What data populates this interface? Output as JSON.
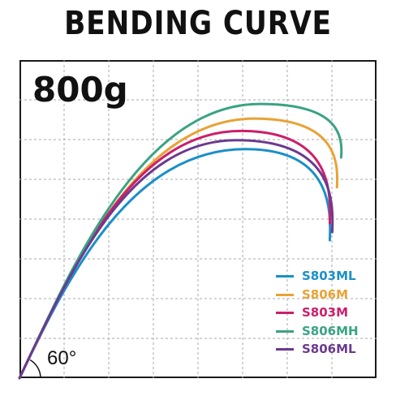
{
  "chart_data": {
    "type": "line",
    "title": "BENDING CURVE",
    "load_label": "800g",
    "angle_label": "60°",
    "grid": true,
    "legend_position": "bottom-right",
    "series": [
      {
        "name": "S803ML",
        "color": "#1a8fc9",
        "peak_height": 0.72,
        "peak_x": 0.633,
        "end_x": 0.869,
        "end_height": 0.434
      },
      {
        "name": "S806M",
        "color": "#e9a235",
        "peak_height": 0.816,
        "peak_x": 0.658,
        "end_x": 0.889,
        "end_height": 0.6
      },
      {
        "name": "S803M",
        "color": "#cc1f6a",
        "peak_height": 0.777,
        "peak_x": 0.62,
        "end_x": 0.869,
        "end_height": 0.487
      },
      {
        "name": "S806MH",
        "color": "#3aa383",
        "peak_height": 0.862,
        "peak_x": 0.674,
        "end_x": 0.901,
        "end_height": 0.694
      },
      {
        "name": "S806ML",
        "color": "#6b3a8e",
        "peak_height": 0.748,
        "peak_x": 0.607,
        "end_x": 0.876,
        "end_height": 0.459
      }
    ]
  }
}
